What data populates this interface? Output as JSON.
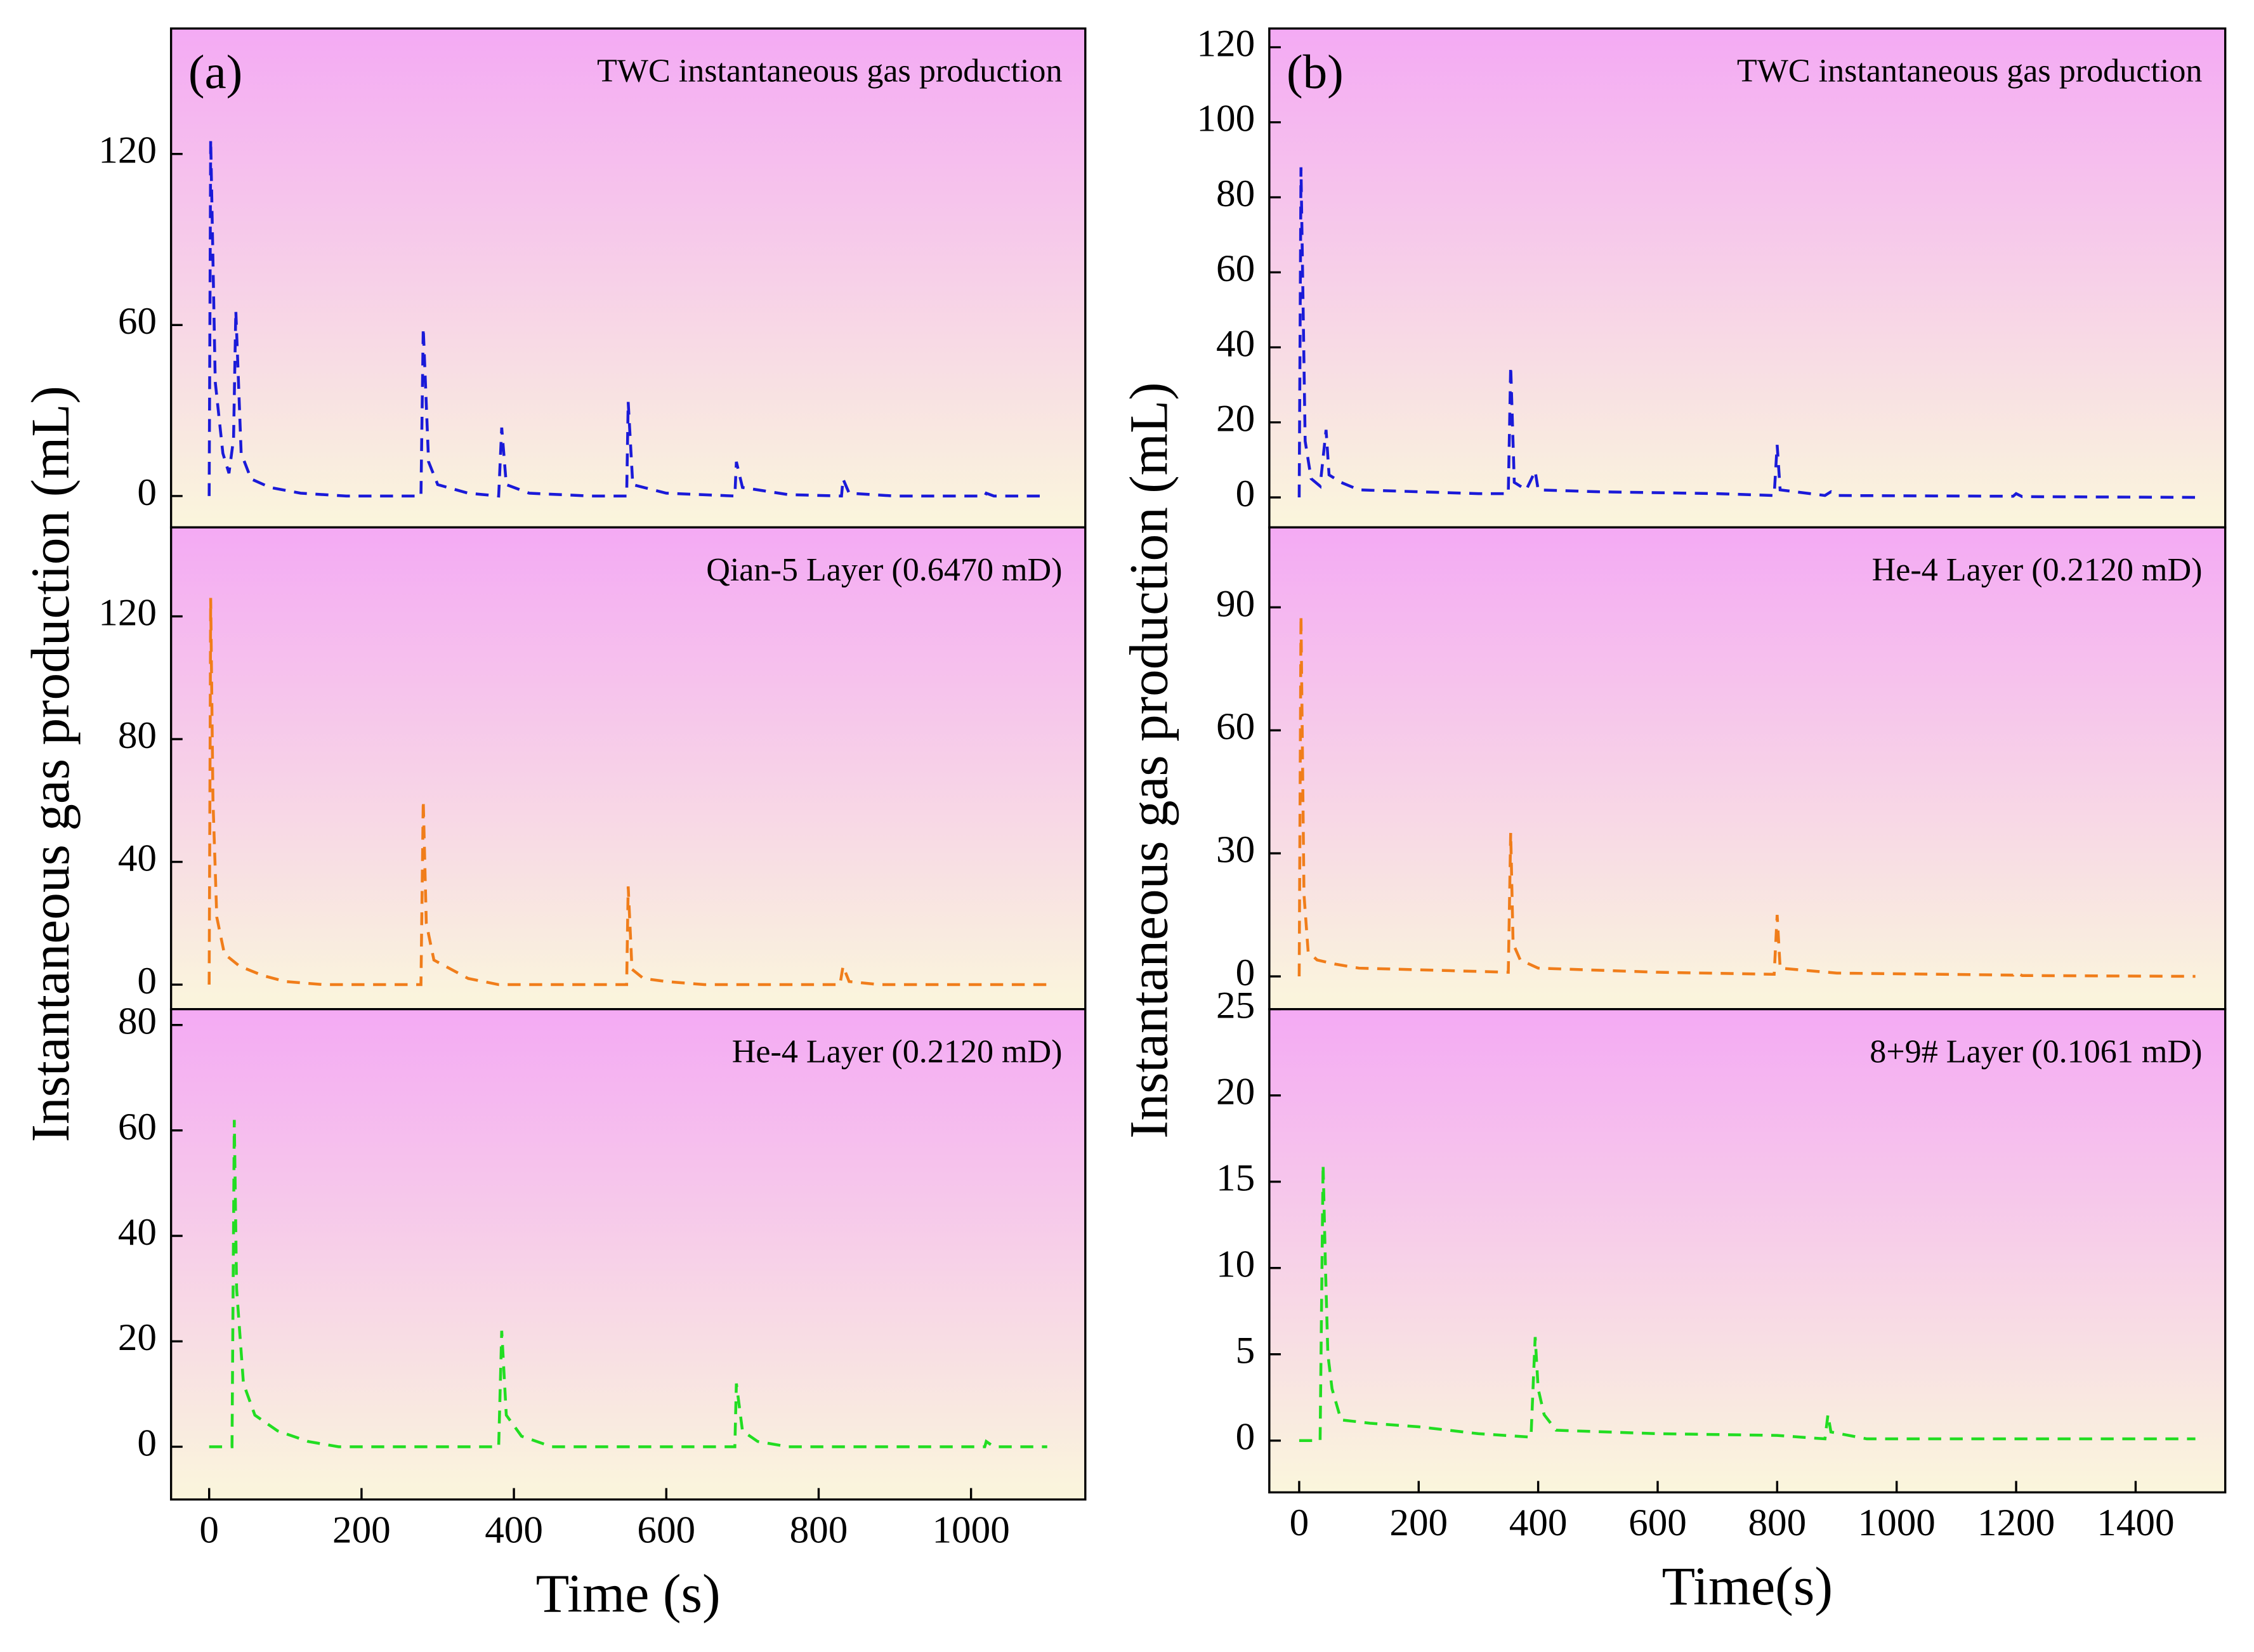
{
  "chart_data": [
    {
      "type": "line",
      "panel_label": "(a)",
      "annotation": "TWC instantaneous gas production",
      "x": [
        0,
        2,
        8,
        18,
        26,
        32,
        35,
        42,
        55,
        80,
        120,
        180,
        278,
        281,
        288,
        300,
        340,
        380,
        384,
        390,
        420,
        500,
        548,
        550,
        556,
        600,
        690,
        692,
        700,
        760,
        830,
        832,
        840,
        900,
        1018,
        1020,
        1030,
        1100
      ],
      "series": [
        {
          "color": "#1a1ad8",
          "values": [
            0,
            125,
            40,
            15,
            8,
            20,
            65,
            15,
            6,
            3,
            1,
            0,
            0,
            59,
            12,
            4,
            1,
            0,
            24,
            4,
            1,
            0,
            0,
            33,
            4,
            1,
            0,
            12,
            3,
            0.5,
            0,
            6,
            1,
            0,
            0,
            1,
            0,
            0
          ]
        }
      ],
      "xlim": [
        -50,
        1150
      ],
      "ylim": [
        -11,
        164
      ],
      "yticks": [
        0,
        60,
        120
      ]
    },
    {
      "type": "line",
      "annotation": "Qian-5 Layer (0.6470 mD)",
      "ylabel": "Instantaneous gas production (mL)",
      "x": [
        0,
        2,
        5,
        10,
        20,
        40,
        70,
        100,
        150,
        278,
        281,
        285,
        295,
        310,
        340,
        380,
        548,
        550,
        555,
        570,
        600,
        650,
        828,
        832,
        840,
        880,
        1100
      ],
      "series": [
        {
          "color": "#f07d1a",
          "values": [
            0,
            126,
            60,
            22,
            10,
            6,
            3,
            1,
            0,
            0,
            60,
            20,
            8,
            6,
            2,
            0,
            0,
            32,
            5,
            2,
            1,
            0,
            0,
            6,
            1,
            0,
            0
          ]
        }
      ],
      "xlim": [
        -50,
        1150
      ],
      "ylim": [
        -8,
        149
      ],
      "yticks": [
        0,
        40,
        80,
        120
      ]
    },
    {
      "type": "line",
      "annotation": "He-4 Layer (0.2120 mD)",
      "xlabel": "Time (s)",
      "x": [
        0,
        30,
        33,
        36,
        45,
        60,
        90,
        130,
        170,
        380,
        384,
        390,
        410,
        450,
        690,
        692,
        700,
        720,
        760,
        1018,
        1020,
        1030,
        1100
      ],
      "series": [
        {
          "color": "#22dd22",
          "values": [
            0,
            0,
            62,
            30,
            12,
            6,
            3,
            1,
            0,
            0,
            22,
            6,
            2,
            0,
            0,
            12,
            3,
            1,
            0,
            0,
            1,
            0,
            0
          ]
        }
      ],
      "xlim": [
        -50,
        1150
      ],
      "xticks": [
        0,
        200,
        400,
        600,
        800,
        1000
      ],
      "ylim": [
        -10,
        83
      ],
      "yticks": [
        0,
        20,
        40,
        60,
        80
      ]
    },
    {
      "type": "line",
      "panel_label": "(b)",
      "annotation": "TWC instantaneous gas production",
      "x": [
        0,
        3,
        10,
        20,
        35,
        45,
        50,
        70,
        100,
        300,
        350,
        354,
        360,
        380,
        395,
        400,
        500,
        700,
        795,
        800,
        805,
        880,
        890,
        900,
        1195,
        1200,
        1210,
        1500
      ],
      "series": [
        {
          "color": "#1a1ad8",
          "values": [
            0,
            88,
            15,
            5,
            3,
            18,
            6,
            4,
            2,
            1,
            1,
            35,
            4,
            2,
            7,
            2,
            1.5,
            1,
            0.5,
            14,
            2,
            0.5,
            1.5,
            0.5,
            0.3,
            1,
            0.2,
            0
          ]
        }
      ],
      "xlim": [
        -50,
        1550
      ],
      "ylim": [
        -8,
        125
      ],
      "yticks": [
        0,
        20,
        40,
        60,
        80,
        100,
        120
      ]
    },
    {
      "type": "line",
      "annotation": "He-4 Layer (0.2120 mD)",
      "ylabel": "Instantaneous gas production (mL)",
      "x": [
        0,
        3,
        8,
        15,
        30,
        60,
        100,
        350,
        354,
        358,
        370,
        400,
        600,
        795,
        800,
        805,
        900,
        1195,
        1200,
        1210,
        1500
      ],
      "series": [
        {
          "color": "#f07d1a",
          "values": [
            0,
            88,
            20,
            6,
            4,
            3,
            2,
            1,
            35,
            8,
            4,
            2,
            1,
            0.5,
            15,
            2,
            0.8,
            0.3,
            1,
            0.2,
            0
          ]
        }
      ],
      "xlim": [
        -50,
        1550
      ],
      "ylim": [
        -8,
        109.5
      ],
      "yticks": [
        0,
        30,
        60,
        90
      ]
    },
    {
      "type": "line",
      "annotation": "8+9# Layer (0.1061 mD)",
      "xlabel": "Time(s)",
      "x": [
        0,
        35,
        40,
        44,
        48,
        55,
        70,
        120,
        200,
        300,
        388,
        395,
        400,
        410,
        430,
        600,
        800,
        880,
        885,
        890,
        950,
        1500
      ],
      "series": [
        {
          "color": "#22dd22",
          "values": [
            0,
            0,
            16,
            10,
            5,
            3,
            1.2,
            1,
            0.8,
            0.4,
            0.2,
            6,
            3,
            1.5,
            0.6,
            0.4,
            0.3,
            0.1,
            1.5,
            0.5,
            0.1,
            0.1
          ]
        }
      ],
      "xlim": [
        -50,
        1550
      ],
      "xticks": [
        0,
        200,
        400,
        600,
        800,
        1000,
        1200,
        1400
      ],
      "ylim": [
        -3,
        25
      ],
      "yticks": [
        0,
        5,
        10,
        15,
        20,
        25
      ]
    }
  ]
}
